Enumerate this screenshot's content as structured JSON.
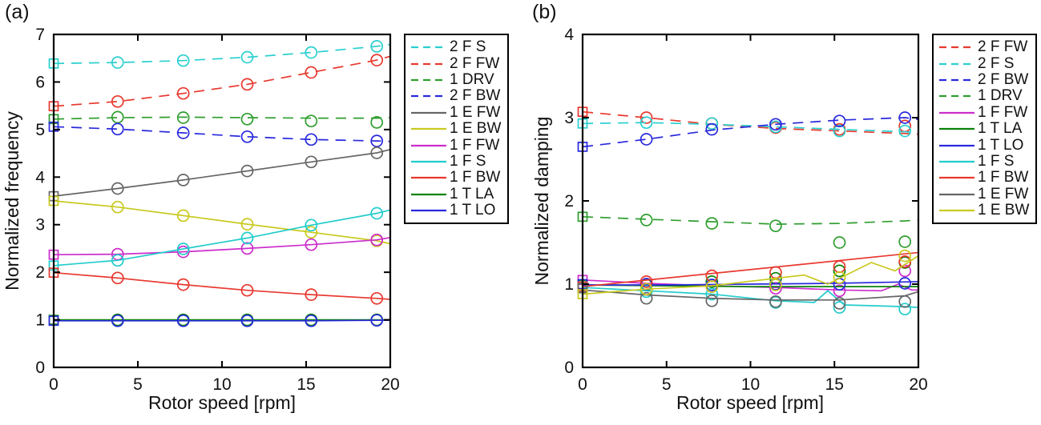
{
  "figure": {
    "panel_a_label": "(a)",
    "panel_b_label": "(b)",
    "xlabel": "Rotor speed [rpm]",
    "ylabel_a": "Normalized frequency",
    "ylabel_b": "Normalized damping"
  },
  "chart_data": [
    {
      "type": "line",
      "panel_label": "(a)",
      "xlabel": "Rotor speed [rpm]",
      "ylabel": "Normalized frequency",
      "xlim": [
        0,
        20
      ],
      "ylim": [
        0,
        7
      ],
      "xticks": [
        0,
        5,
        10,
        15,
        20
      ],
      "yticks": [
        0,
        1,
        2,
        3,
        4,
        5,
        6,
        7
      ],
      "grid": false,
      "legend_position": "outside-right",
      "marker_note": "square marker at x=0, open circles at measured speeds; dashed = 2nd order / drivetrain modes, solid = 1st order modes",
      "x": [
        0,
        3.8,
        7.7,
        11.5,
        15.3,
        19.2
      ],
      "series": [
        {
          "name": "2 F S",
          "color": "#2bcfcf",
          "style": "dashed",
          "values": [
            6.39,
            6.41,
            6.45,
            6.52,
            6.62,
            6.75
          ],
          "line": {
            "x": [
              0,
              3.8,
              7.7,
              11.5,
              15.3,
              19.2,
              20
            ],
            "y": [
              6.39,
              6.41,
              6.45,
              6.52,
              6.62,
              6.75,
              6.79
            ]
          }
        },
        {
          "name": "2 F FW",
          "color": "#e8392f",
          "style": "dashed",
          "values": [
            5.49,
            5.59,
            5.76,
            5.95,
            6.2,
            6.46
          ],
          "line": {
            "x": [
              0,
              3.8,
              7.7,
              11.5,
              15.3,
              19.2,
              20
            ],
            "y": [
              5.49,
              5.59,
              5.76,
              5.95,
              6.2,
              6.46,
              6.54
            ]
          }
        },
        {
          "name": "1 DRV",
          "color": "#2f9e2f",
          "style": "dashed",
          "values": [
            5.22,
            5.26,
            5.25,
            5.22,
            5.18,
            5.15
          ],
          "line": {
            "x": [
              0,
              3.8,
              7.7,
              11.5,
              15.3,
              19.2,
              20
            ],
            "y": [
              5.22,
              5.25,
              5.26,
              5.25,
              5.24,
              5.24,
              5.25
            ]
          }
        },
        {
          "name": "2 F BW",
          "color": "#2929dd",
          "style": "dashed",
          "values": [
            5.06,
            5.01,
            4.93,
            4.85,
            4.79,
            4.76
          ],
          "line": {
            "x": [
              0,
              3.8,
              7.7,
              11.5,
              15.3,
              19.2,
              20
            ],
            "y": [
              5.06,
              5.01,
              4.93,
              4.85,
              4.79,
              4.76,
              4.75
            ]
          }
        },
        {
          "name": "1 E FW",
          "color": "#666666",
          "style": "solid",
          "values": [
            3.6,
            3.76,
            3.94,
            4.13,
            4.32,
            4.51
          ],
          "line": {
            "x": [
              0,
              3.8,
              7.7,
              11.5,
              15.3,
              19.2,
              20
            ],
            "y": [
              3.6,
              3.76,
              3.94,
              4.13,
              4.32,
              4.51,
              4.58
            ]
          }
        },
        {
          "name": "1 E BW",
          "color": "#c9c920",
          "style": "solid",
          "values": [
            3.5,
            3.37,
            3.19,
            3.01,
            2.84,
            2.66
          ],
          "line": {
            "x": [
              0,
              3.8,
              7.7,
              11.5,
              15.3,
              19.2,
              20
            ],
            "y": [
              3.5,
              3.37,
              3.19,
              3.01,
              2.84,
              2.66,
              2.6
            ]
          }
        },
        {
          "name": "1 F FW",
          "color": "#cc2dcc",
          "style": "solid",
          "values": [
            2.37,
            2.38,
            2.43,
            2.5,
            2.58,
            2.68
          ],
          "line": {
            "x": [
              0,
              3.8,
              7.7,
              11.5,
              15.3,
              19.2,
              20
            ],
            "y": [
              2.37,
              2.38,
              2.43,
              2.5,
              2.58,
              2.68,
              2.73
            ]
          }
        },
        {
          "name": "1 F S",
          "color": "#22cccc",
          "style": "solid",
          "values": [
            2.14,
            2.25,
            2.49,
            2.72,
            2.99,
            3.24
          ],
          "line": {
            "x": [
              0,
              3.8,
              7.7,
              11.5,
              15.3,
              19.2,
              20
            ],
            "y": [
              2.14,
              2.25,
              2.49,
              2.72,
              2.99,
              3.24,
              3.31
            ]
          }
        },
        {
          "name": "1 F BW",
          "color": "#e8392f",
          "style": "solid",
          "values": [
            1.99,
            1.88,
            1.74,
            1.62,
            1.53,
            1.45
          ],
          "line": {
            "x": [
              0,
              3.8,
              7.7,
              11.5,
              15.3,
              19.2,
              20
            ],
            "y": [
              1.99,
              1.88,
              1.74,
              1.62,
              1.53,
              1.45,
              1.43
            ]
          }
        },
        {
          "name": "1 T LA",
          "color": "#0b820b",
          "style": "solid",
          "values": [
            1.0,
            1.0,
            1.0,
            1.0,
            1.0,
            1.0
          ],
          "line": {
            "x": [
              0,
              3.8,
              7.7,
              11.5,
              15.3,
              19.2,
              20
            ],
            "y": [
              1.0,
              1.0,
              1.0,
              1.0,
              1.0,
              1.0,
              1.0
            ]
          }
        },
        {
          "name": "1 T LO",
          "color": "#2929dd",
          "style": "solid",
          "values": [
            0.98,
            0.98,
            0.98,
            0.98,
            0.98,
            0.99
          ],
          "line": {
            "x": [
              0,
              3.8,
              7.7,
              11.5,
              15.3,
              19.2,
              20
            ],
            "y": [
              0.98,
              0.98,
              0.98,
              0.98,
              0.98,
              0.99,
              0.99
            ]
          }
        }
      ]
    },
    {
      "type": "line",
      "panel_label": "(b)",
      "xlabel": "Rotor speed [rpm]",
      "ylabel": "Normalized damping",
      "xlim": [
        0,
        20
      ],
      "ylim": [
        0,
        4
      ],
      "xticks": [
        0,
        5,
        10,
        15,
        20
      ],
      "yticks": [
        0,
        1,
        2,
        3,
        4
      ],
      "grid": false,
      "legend_position": "outside-right",
      "marker_note": "square marker at x=0, open circles at measured speeds; markers may deviate from fitted lines",
      "x": [
        0,
        3.8,
        7.7,
        11.5,
        15.3,
        19.2
      ],
      "series": [
        {
          "name": "2 F FW",
          "color": "#e8392f",
          "style": "dashed",
          "values": [
            3.07,
            3.0,
            2.93,
            2.88,
            2.86,
            2.9
          ],
          "line": {
            "x": [
              0,
              3.8,
              7.7,
              11.5,
              15.3,
              19.2,
              20
            ],
            "y": [
              3.07,
              3.0,
              2.92,
              2.87,
              2.84,
              2.81,
              2.8
            ]
          }
        },
        {
          "name": "2 F S",
          "color": "#2bcfcf",
          "style": "dashed",
          "values": [
            2.93,
            2.94,
            2.93,
            2.89,
            2.84,
            2.84
          ],
          "line": {
            "x": [
              0,
              3.8,
              7.7,
              11.5,
              15.3,
              19.2,
              20
            ],
            "y": [
              2.93,
              2.94,
              2.92,
              2.89,
              2.86,
              2.83,
              2.82
            ]
          }
        },
        {
          "name": "2 F BW",
          "color": "#2929dd",
          "style": "dashed",
          "values": [
            2.65,
            2.74,
            2.86,
            2.92,
            2.96,
            3.0
          ],
          "line": {
            "x": [
              0,
              3.8,
              7.7,
              11.5,
              15.3,
              19.2,
              20
            ],
            "y": [
              2.65,
              2.74,
              2.85,
              2.92,
              2.97,
              3.0,
              2.98
            ]
          }
        },
        {
          "name": "1 DRV",
          "color": "#2f9e2f",
          "style": "dashed",
          "values": [
            1.81,
            1.77,
            1.73,
            1.7,
            1.5,
            1.51
          ],
          "line": {
            "x": [
              0,
              3.8,
              7.7,
              11.5,
              15.3,
              19.2,
              20
            ],
            "y": [
              1.81,
              1.78,
              1.75,
              1.72,
              1.73,
              1.76,
              1.77
            ]
          }
        },
        {
          "name": "1 F FW",
          "color": "#cc2dcc",
          "style": "solid",
          "values": [
            1.05,
            0.99,
            0.97,
            0.95,
            0.92,
            1.16
          ],
          "line": {
            "x": [
              0,
              3.8,
              7.7,
              11.5,
              15.3,
              17.8,
              18.8,
              19.6,
              20
            ],
            "y": [
              1.05,
              1.01,
              0.98,
              0.96,
              0.93,
              0.92,
              1.0,
              0.93,
              0.93
            ]
          }
        },
        {
          "name": "1 T LA",
          "color": "#0b820b",
          "style": "solid",
          "values": [
            0.99,
            0.99,
            1.03,
            1.07,
            1.16,
            1.26
          ],
          "line": {
            "x": [
              0,
              5,
              10,
              15,
              20
            ],
            "y": [
              0.99,
              0.98,
              0.97,
              0.97,
              0.97
            ]
          }
        },
        {
          "name": "1 T LO",
          "color": "#2929dd",
          "style": "solid",
          "values": [
            1.0,
            1.0,
            0.99,
            1.0,
            1.0,
            1.01
          ],
          "line": {
            "x": [
              0,
              5,
              10,
              15,
              20
            ],
            "y": [
              0.99,
              0.99,
              1.0,
              1.01,
              1.03
            ]
          }
        },
        {
          "name": "1 F S",
          "color": "#22cccc",
          "style": "solid",
          "values": [
            0.96,
            0.91,
            0.88,
            0.78,
            0.72,
            0.7
          ],
          "line": {
            "x": [
              0,
              3.8,
              7.7,
              11.5,
              13.8,
              14.6,
              15.6,
              19.2,
              20
            ],
            "y": [
              0.96,
              0.92,
              0.88,
              0.8,
              0.78,
              0.92,
              0.75,
              0.73,
              0.72
            ]
          }
        },
        {
          "name": "1 F BW",
          "color": "#e8392f",
          "style": "solid",
          "values": [
            0.97,
            1.03,
            1.1,
            1.14,
            1.21,
            1.27
          ],
          "line": {
            "x": [
              0,
              20
            ],
            "y": [
              0.97,
              1.38
            ]
          }
        },
        {
          "name": "1 E FW",
          "color": "#666666",
          "style": "solid",
          "values": [
            0.95,
            0.83,
            0.8,
            0.79,
            0.77,
            0.79
          ],
          "line": {
            "x": [
              0,
              3.8,
              7.7,
              11.5,
              15.3,
              19.2,
              20
            ],
            "y": [
              0.93,
              0.87,
              0.83,
              0.81,
              0.81,
              0.86,
              0.91
            ]
          }
        },
        {
          "name": "1 E BW",
          "color": "#c9c920",
          "style": "solid",
          "values": [
            0.88,
            0.94,
            0.97,
            0.99,
            1.08,
            1.34
          ],
          "line": {
            "x": [
              0,
              3.8,
              7.7,
              11.5,
              13.2,
              14.6,
              17.2,
              18.6,
              20
            ],
            "y": [
              0.88,
              0.94,
              0.98,
              1.07,
              1.11,
              1.0,
              1.26,
              1.16,
              1.34
            ]
          }
        }
      ]
    }
  ]
}
